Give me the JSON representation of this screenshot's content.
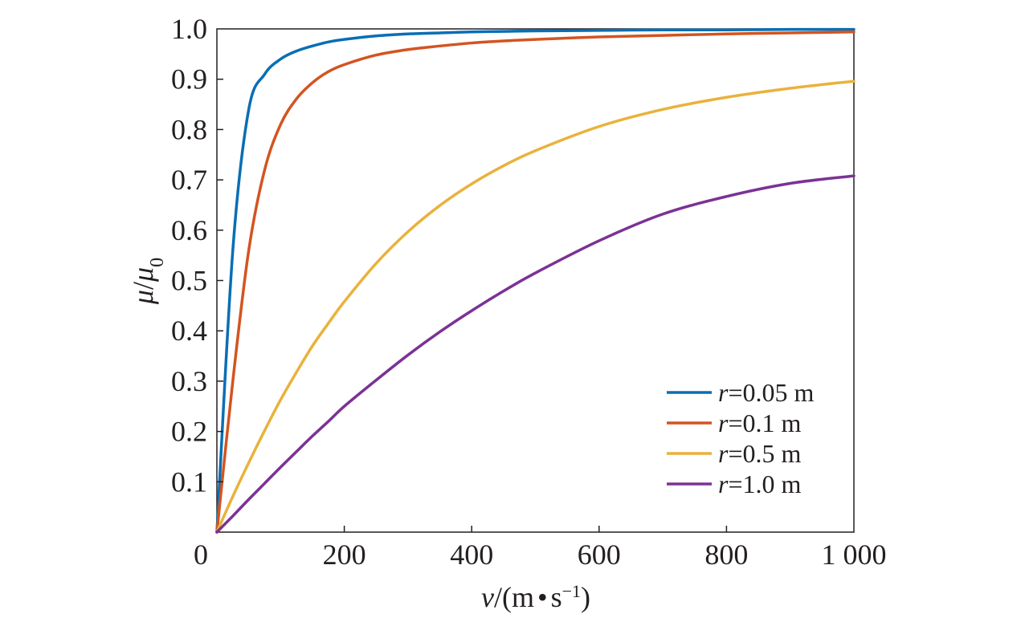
{
  "chart_data": {
    "type": "line",
    "xlabel": "v/(m • s⁻¹)",
    "ylabel": "μ/μ₀",
    "xlim": [
      0,
      1000
    ],
    "ylim": [
      0,
      1.0
    ],
    "xticks": [
      0,
      200,
      400,
      600,
      800,
      1000
    ],
    "xtick_labels": [
      "0",
      "200",
      "400",
      "600",
      "800",
      "1 000"
    ],
    "yticks": [
      0.1,
      0.2,
      0.3,
      0.4,
      0.5,
      0.6,
      0.7,
      0.8,
      0.9,
      1.0
    ],
    "ytick_labels": [
      "0.1",
      "0.2",
      "0.3",
      "0.4",
      "0.5",
      "0.6",
      "0.7",
      "0.8",
      "0.9",
      "1.0"
    ],
    "grid": false,
    "legend_position": "bottom-right",
    "x": [
      0,
      25,
      50,
      75,
      100,
      125,
      150,
      175,
      200,
      250,
      300,
      350,
      400,
      450,
      500,
      600,
      700,
      800,
      900,
      1000
    ],
    "series": [
      {
        "name": "r=0.05 m",
        "r_symbol": "r",
        "r_value": "=0.05 m",
        "color": "#0a6eb4",
        "values": [
          0.0,
          0.56,
          0.84,
          0.91,
          0.94,
          0.956,
          0.966,
          0.974,
          0.979,
          0.986,
          0.99,
          0.992,
          0.994,
          0.995,
          0.996,
          0.997,
          0.998,
          0.998,
          0.999,
          0.999
        ]
      },
      {
        "name": "r=0.1 m",
        "r_symbol": "r",
        "r_value": "=0.1 m",
        "color": "#d35420",
        "values": [
          0.0,
          0.3,
          0.56,
          0.72,
          0.81,
          0.861,
          0.893,
          0.915,
          0.929,
          0.948,
          0.959,
          0.966,
          0.972,
          0.976,
          0.979,
          0.984,
          0.987,
          0.99,
          0.992,
          0.994
        ]
      },
      {
        "name": "r=0.5 m",
        "r_symbol": "r",
        "r_value": "=0.5 m",
        "color": "#e9b23b",
        "values": [
          0.0,
          0.071,
          0.138,
          0.202,
          0.263,
          0.318,
          0.37,
          0.415,
          0.458,
          0.534,
          0.597,
          0.649,
          0.692,
          0.728,
          0.758,
          0.806,
          0.84,
          0.864,
          0.882,
          0.896
        ]
      },
      {
        "name": "r=1.0 m",
        "r_symbol": "r",
        "r_value": "=1.0 m",
        "color": "#7b3294",
        "values": [
          0.0,
          0.032,
          0.065,
          0.097,
          0.129,
          0.16,
          0.191,
          0.22,
          0.25,
          0.302,
          0.352,
          0.398,
          0.44,
          0.479,
          0.515,
          0.579,
          0.632,
          0.667,
          0.693,
          0.708
        ]
      }
    ]
  }
}
